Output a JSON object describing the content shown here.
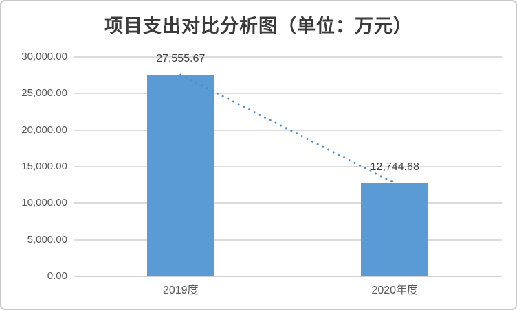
{
  "chart": {
    "title": "项目支出对比分析图（单位：万元）"
  },
  "chart_data": {
    "type": "bar",
    "title": "项目支出对比分析图（单位：万元）",
    "categories": [
      "2019度",
      "2020年度"
    ],
    "values": [
      27555.67,
      12744.68
    ],
    "data_labels": [
      "27,555.67",
      "12,744.68"
    ],
    "y_ticks": [
      "0.00",
      "5,000.00",
      "10,000.00",
      "15,000.00",
      "20,000.00",
      "25,000.00",
      "30,000.00"
    ],
    "xlabel": "",
    "ylabel": "",
    "ylim": [
      0,
      30000
    ],
    "y_tick_interval": 5000,
    "grid": true,
    "legend": false,
    "trendline": {
      "style": "dotted",
      "from_value": 27555.67,
      "to_value": 12744.68
    },
    "colors": {
      "bar": "#5B9BD5",
      "trendline": "#4E8FD2",
      "gridline": "#DBDBDB",
      "axis_line": "#D2D2D2",
      "title_text": "#3B3B3B",
      "data_label_text": "#404040",
      "tick_text": "#595959"
    }
  }
}
